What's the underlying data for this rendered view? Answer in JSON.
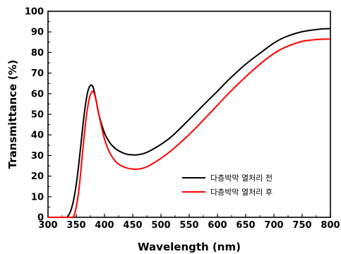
{
  "chart_data": {
    "type": "line",
    "xlabel": "Wavelength (nm)",
    "ylabel": "Transmittance (%)",
    "xlim": [
      300,
      800
    ],
    "ylim": [
      0,
      100
    ],
    "xticks": [
      300,
      350,
      400,
      450,
      500,
      550,
      600,
      650,
      700,
      750,
      800
    ],
    "yticks": [
      0,
      10,
      20,
      30,
      40,
      50,
      60,
      70,
      80,
      90,
      100
    ],
    "legend_position": "lower-right",
    "grid": false,
    "series": [
      {
        "name": "다층박막 열처리 전",
        "color": "#000000",
        "x": [
          300,
          330,
          335,
          340,
          345,
          350,
          355,
          360,
          365,
          370,
          375,
          380,
          385,
          390,
          400,
          410,
          420,
          430,
          440,
          450,
          460,
          470,
          480,
          500,
          520,
          550,
          580,
          600,
          620,
          650,
          680,
          700,
          720,
          750,
          780,
          800
        ],
        "y": [
          0,
          0,
          0.5,
          3,
          8,
          16,
          27,
          40,
          52,
          60.5,
          64,
          63,
          57,
          50,
          41,
          36,
          33.2,
          31.6,
          30.6,
          30.3,
          30.4,
          31,
          32.2,
          35.4,
          39.5,
          47.5,
          55.8,
          61.2,
          66.8,
          74.3,
          80.6,
          84.6,
          87.5,
          90.1,
          91.3,
          91.6
        ]
      },
      {
        "name": "다층박막 열처리 후",
        "color": "#ff0000",
        "x": [
          300,
          340,
          345,
          350,
          355,
          360,
          365,
          370,
          375,
          380,
          385,
          390,
          400,
          410,
          420,
          430,
          440,
          450,
          460,
          470,
          480,
          500,
          520,
          550,
          580,
          600,
          620,
          650,
          680,
          700,
          720,
          750,
          780,
          800
        ],
        "y": [
          0,
          0,
          0.3,
          5,
          14,
          28,
          42,
          53,
          59.5,
          61,
          57,
          50,
          38,
          31,
          27,
          25,
          23.9,
          23.4,
          23.4,
          24,
          25.2,
          28.6,
          32.8,
          40.2,
          48.6,
          54.4,
          60.2,
          68.2,
          75.4,
          79.5,
          82.5,
          85.4,
          86.4,
          86.5
        ]
      }
    ]
  }
}
